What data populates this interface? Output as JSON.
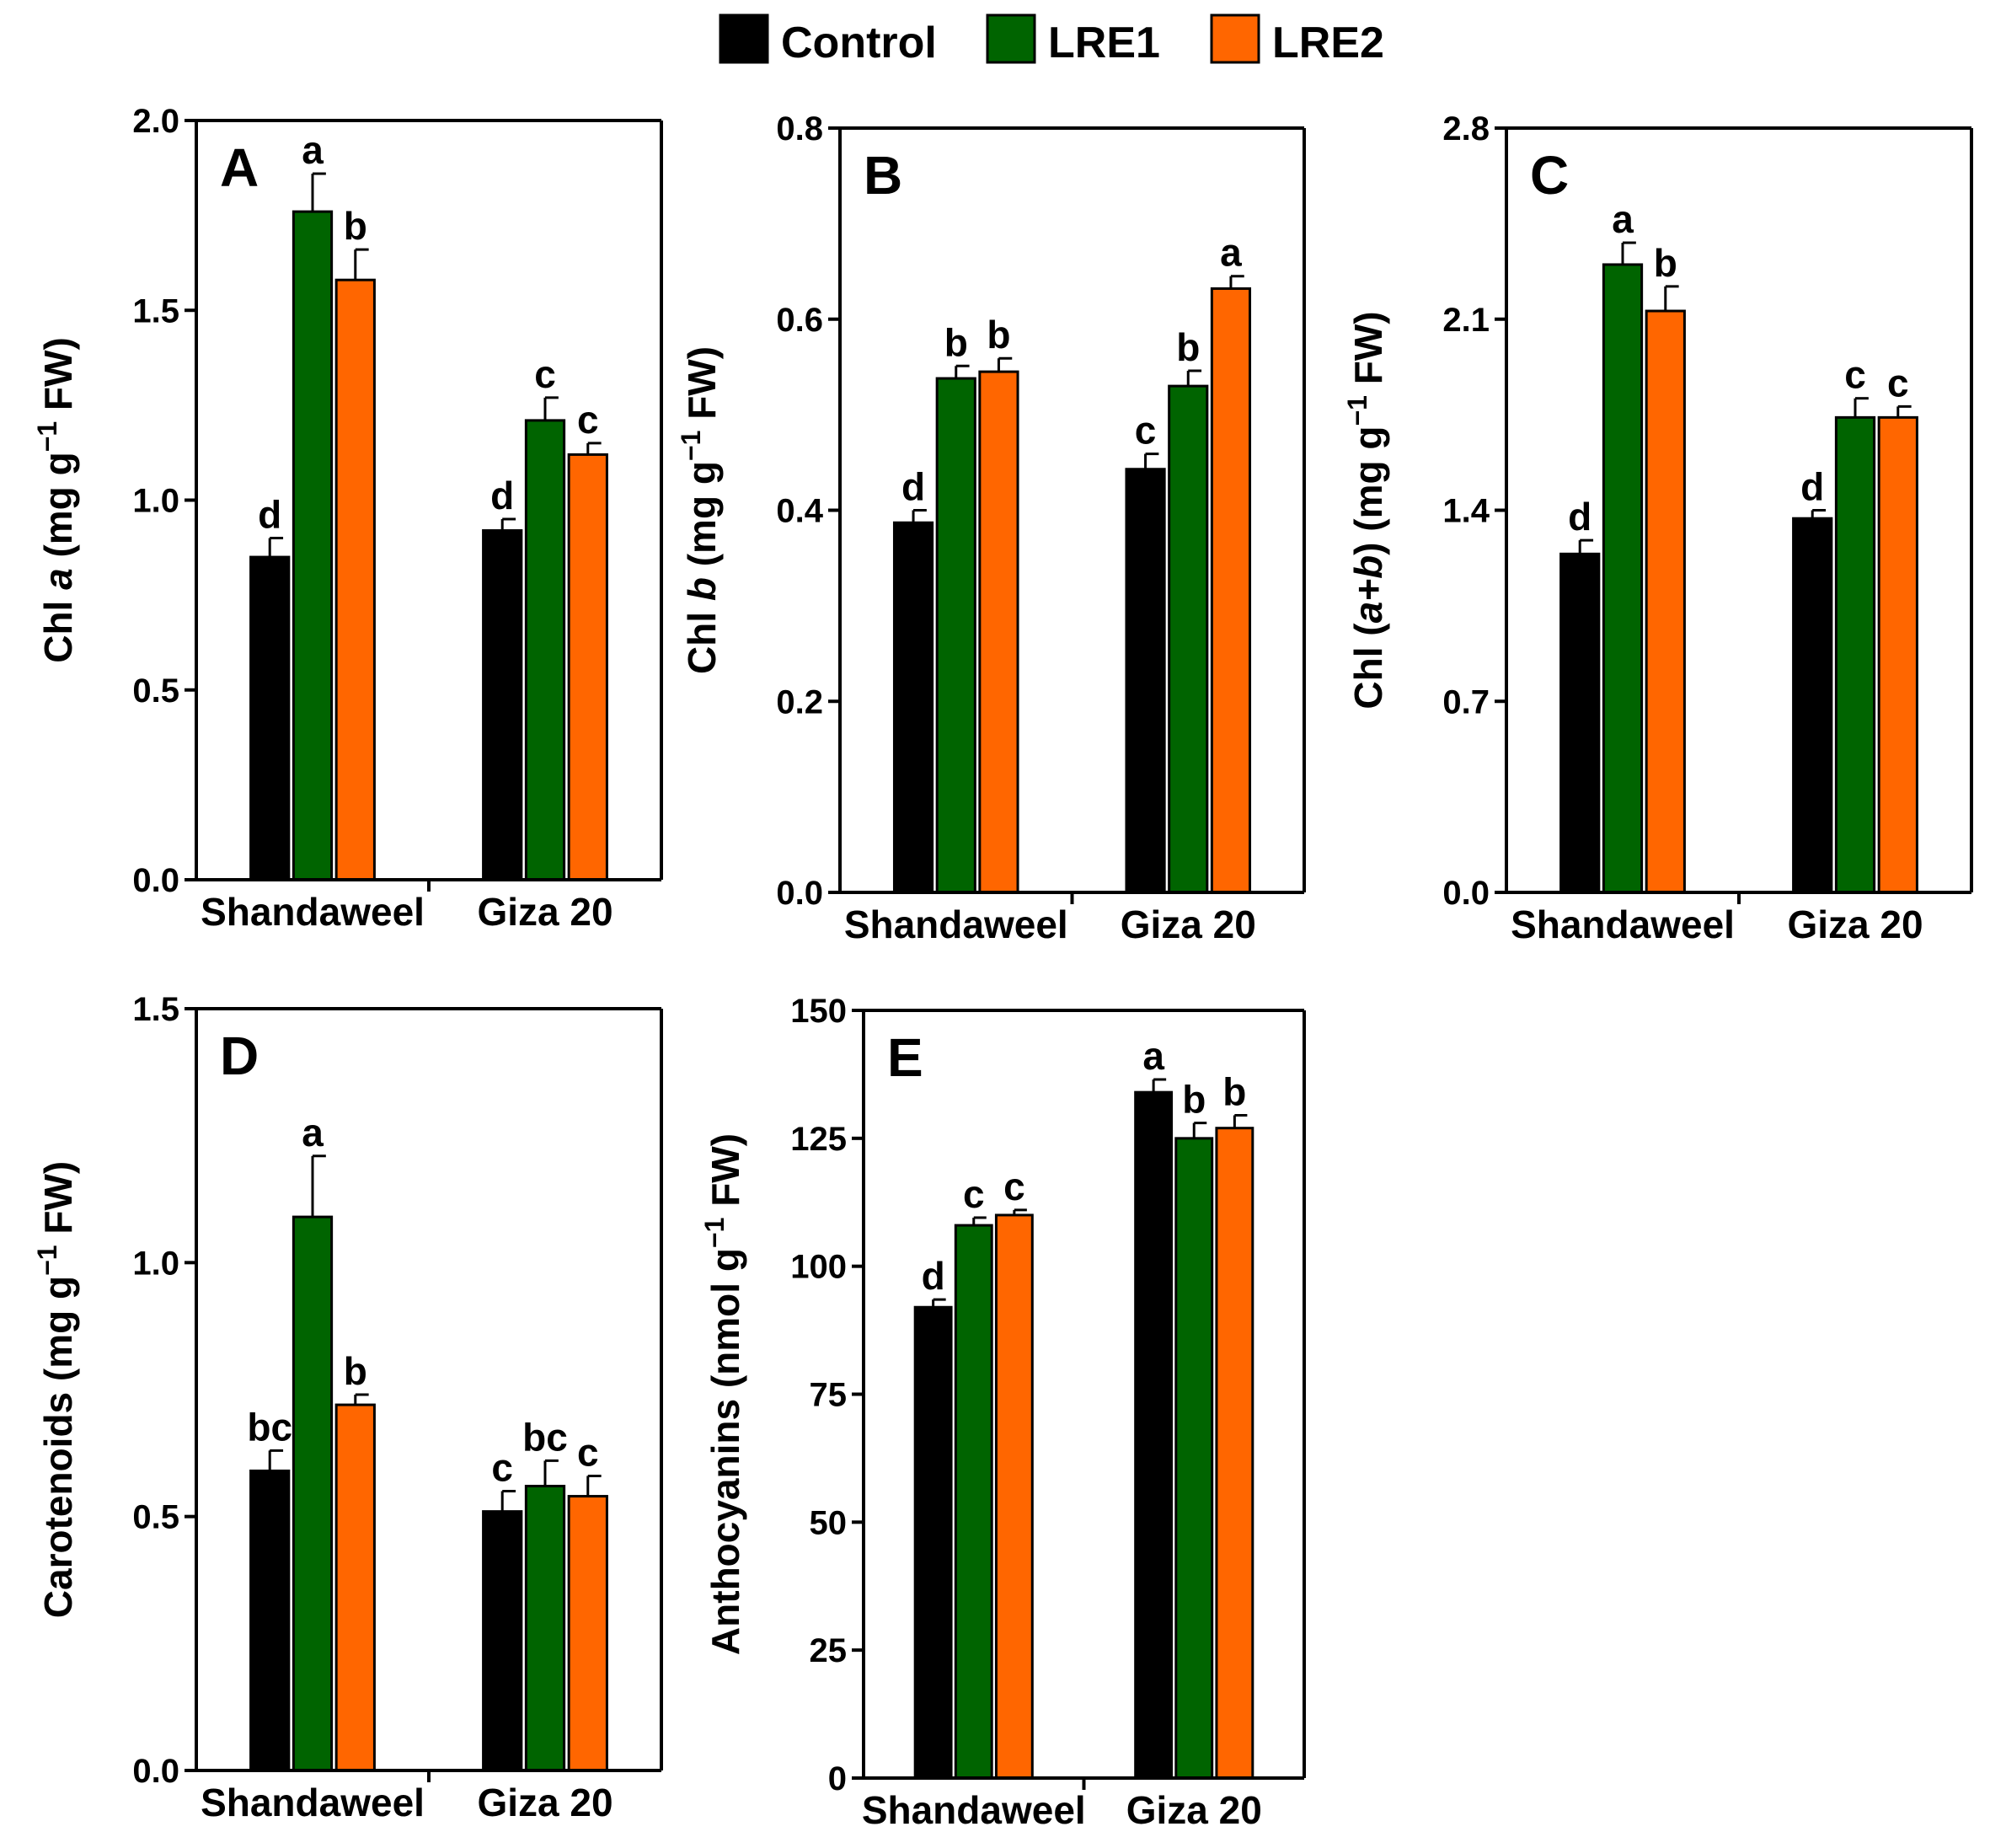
{
  "legend": [
    {
      "name": "Control",
      "color": "#000000"
    },
    {
      "name": "LRE1",
      "color": "#006400"
    },
    {
      "name": "LRE2",
      "color": "#FF6600"
    }
  ],
  "chart_data": [
    {
      "type": "bar",
      "panel": "A",
      "ylabel_parts": [
        [
          "Chl ",
          "n"
        ],
        [
          "a",
          "i"
        ],
        [
          " (mg g",
          "n"
        ],
        [
          "−1",
          "sup"
        ],
        [
          " FW)",
          "n"
        ]
      ],
      "categories": [
        "Shandaweel",
        "Giza 20"
      ],
      "ylim": [
        0,
        2.0
      ],
      "yticks": [
        0,
        0.5,
        1.0,
        1.5,
        2.0
      ],
      "ytick_labels": [
        "0.0",
        "0.5",
        "1.0",
        "1.5",
        "2.0"
      ],
      "series": [
        {
          "name": "Control",
          "values": [
            0.85,
            0.92
          ],
          "errors": [
            0.05,
            0.03
          ],
          "letters": [
            "d",
            "d"
          ]
        },
        {
          "name": "LRE1",
          "values": [
            1.76,
            1.21
          ],
          "errors": [
            0.1,
            0.06
          ],
          "letters": [
            "a",
            "c"
          ]
        },
        {
          "name": "LRE2",
          "values": [
            1.58,
            1.12
          ],
          "errors": [
            0.08,
            0.03
          ],
          "letters": [
            "b",
            "c"
          ]
        }
      ]
    },
    {
      "type": "bar",
      "panel": "B",
      "ylabel_parts": [
        [
          "Chl ",
          "n"
        ],
        [
          "b",
          "i"
        ],
        [
          " (mg g",
          "n"
        ],
        [
          "−1",
          "sup"
        ],
        [
          " FW)",
          "n"
        ]
      ],
      "categories": [
        "Shandaweel",
        "Giza 20"
      ],
      "ylim": [
        0,
        0.8
      ],
      "yticks": [
        0,
        0.2,
        0.4,
        0.6,
        0.8
      ],
      "ytick_labels": [
        "0.0",
        "0.2",
        "0.4",
        "0.6",
        "0.8"
      ],
      "series": [
        {
          "name": "Control",
          "values": [
            0.387,
            0.443
          ],
          "errors": [
            0.013,
            0.016
          ],
          "letters": [
            "d",
            "c"
          ]
        },
        {
          "name": "LRE1",
          "values": [
            0.538,
            0.53
          ],
          "errors": [
            0.013,
            0.016
          ],
          "letters": [
            "b",
            "b"
          ]
        },
        {
          "name": "LRE2",
          "values": [
            0.545,
            0.632
          ],
          "errors": [
            0.014,
            0.013
          ],
          "letters": [
            "b",
            "a"
          ]
        }
      ]
    },
    {
      "type": "bar",
      "panel": "C",
      "ylabel_parts": [
        [
          "Chl (",
          "n"
        ],
        [
          "a+b",
          "i"
        ],
        [
          ") (mg g",
          "n"
        ],
        [
          "−1",
          "sup"
        ],
        [
          " FW)",
          "n"
        ]
      ],
      "categories": [
        "Shandaweel",
        "Giza 20"
      ],
      "ylim": [
        0,
        2.8
      ],
      "yticks": [
        0,
        0.7,
        1.4,
        2.1,
        2.8
      ],
      "ytick_labels": [
        "0.0",
        "0.7",
        "1.4",
        "2.1",
        "2.8"
      ],
      "series": [
        {
          "name": "Control",
          "values": [
            1.24,
            1.37
          ],
          "errors": [
            0.05,
            0.03
          ],
          "letters": [
            "d",
            "d"
          ]
        },
        {
          "name": "LRE1",
          "values": [
            2.3,
            1.74
          ],
          "errors": [
            0.08,
            0.07
          ],
          "letters": [
            "a",
            "c"
          ]
        },
        {
          "name": "LRE2",
          "values": [
            2.13,
            1.74
          ],
          "errors": [
            0.09,
            0.04
          ],
          "letters": [
            "b",
            "c"
          ]
        }
      ]
    },
    {
      "type": "bar",
      "panel": "D",
      "ylabel_parts": [
        [
          "Carotenoids (mg g",
          "n"
        ],
        [
          "−1",
          "sup"
        ],
        [
          " FW)",
          "n"
        ]
      ],
      "categories": [
        "Shandaweel",
        "Giza 20"
      ],
      "ylim": [
        0,
        1.5
      ],
      "yticks": [
        0,
        0.5,
        1.0,
        1.5
      ],
      "ytick_labels": [
        "0.0",
        "0.5",
        "1.0",
        "1.5"
      ],
      "series": [
        {
          "name": "Control",
          "values": [
            0.59,
            0.51
          ],
          "errors": [
            0.04,
            0.04
          ],
          "letters": [
            "bc",
            "c"
          ]
        },
        {
          "name": "LRE1",
          "values": [
            1.09,
            0.56
          ],
          "errors": [
            0.12,
            0.05
          ],
          "letters": [
            "a",
            "bc"
          ]
        },
        {
          "name": "LRE2",
          "values": [
            0.72,
            0.54
          ],
          "errors": [
            0.02,
            0.04
          ],
          "letters": [
            "b",
            "c"
          ]
        }
      ]
    },
    {
      "type": "bar",
      "panel": "E",
      "ylabel_parts": [
        [
          "Anthocyanins (nmol g",
          "n"
        ],
        [
          "−1",
          "sup"
        ],
        [
          " FW)",
          "n"
        ]
      ],
      "categories": [
        "Shandaweel",
        "Giza 20"
      ],
      "ylim": [
        0,
        150
      ],
      "yticks": [
        0,
        25,
        50,
        75,
        100,
        125,
        150
      ],
      "ytick_labels": [
        "0",
        "25",
        "50",
        "75",
        "100",
        "125",
        "150"
      ],
      "series": [
        {
          "name": "Control",
          "values": [
            92,
            134
          ],
          "errors": [
            1.5,
            2.5
          ],
          "letters": [
            "d",
            "a"
          ]
        },
        {
          "name": "LRE1",
          "values": [
            108,
            125
          ],
          "errors": [
            1.5,
            3.0
          ],
          "letters": [
            "c",
            "b"
          ]
        },
        {
          "name": "LRE2",
          "values": [
            110,
            127
          ],
          "errors": [
            1.0,
            2.5
          ],
          "letters": [
            "c",
            "b"
          ]
        }
      ]
    }
  ]
}
